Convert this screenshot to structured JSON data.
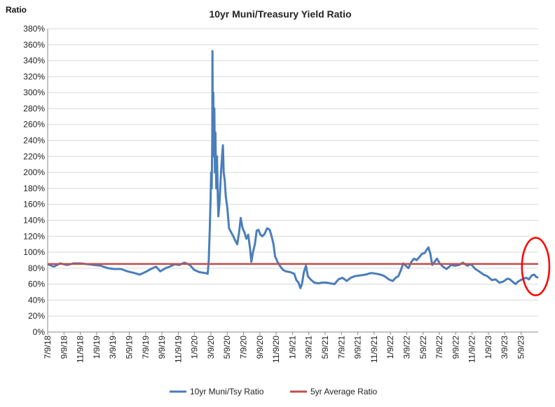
{
  "chart_data": {
    "type": "line",
    "title": "10yr Muni/Treasury Yield Ratio",
    "ylabel": "Ratio",
    "xlabel": "",
    "ylim": [
      0,
      380
    ],
    "ytick_step": 20,
    "ytick_suffix": "%",
    "x_range": [
      "2018-07-09",
      "2023-07-25"
    ],
    "x_tick_labels": [
      "7/9/18",
      "9/9/18",
      "11/9/18",
      "1/9/19",
      "3/9/19",
      "5/9/19",
      "7/9/19",
      "9/9/19",
      "11/9/19",
      "1/9/20",
      "3/9/20",
      "5/9/20",
      "7/9/20",
      "9/9/20",
      "11/9/20",
      "1/9/21",
      "3/9/21",
      "5/9/21",
      "7/9/21",
      "9/9/21",
      "11/9/21",
      "1/9/22",
      "3/9/22",
      "5/9/22",
      "7/9/22",
      "9/9/22",
      "11/9/22",
      "1/9/23",
      "3/9/23",
      "5/9/23"
    ],
    "grid": true,
    "legend_position": "bottom",
    "series": [
      {
        "name": "10yr Muni/Tsy Ratio",
        "color": "#4a7ebb",
        "points": [
          [
            "2018-07-09",
            85
          ],
          [
            "2018-08-01",
            82
          ],
          [
            "2018-08-25",
            86
          ],
          [
            "2018-09-20",
            84
          ],
          [
            "2018-10-15",
            86
          ],
          [
            "2018-11-09",
            86
          ],
          [
            "2018-12-05",
            85
          ],
          [
            "2018-12-30",
            84
          ],
          [
            "2019-01-25",
            83
          ],
          [
            "2019-02-20",
            80
          ],
          [
            "2019-03-15",
            79
          ],
          [
            "2019-04-10",
            79
          ],
          [
            "2019-05-05",
            76
          ],
          [
            "2019-05-30",
            74
          ],
          [
            "2019-06-20",
            72
          ],
          [
            "2019-07-10",
            75
          ],
          [
            "2019-08-01",
            79
          ],
          [
            "2019-08-20",
            82
          ],
          [
            "2019-09-05",
            76
          ],
          [
            "2019-09-25",
            80
          ],
          [
            "2019-10-10",
            82
          ],
          [
            "2019-10-30",
            85
          ],
          [
            "2019-11-15",
            84
          ],
          [
            "2019-12-05",
            87
          ],
          [
            "2019-12-25",
            84
          ],
          [
            "2020-01-10",
            78
          ],
          [
            "2020-01-30",
            75
          ],
          [
            "2020-02-20",
            74
          ],
          [
            "2020-03-01",
            73
          ],
          [
            "2020-03-05",
            90
          ],
          [
            "2020-03-09",
            130
          ],
          [
            "2020-03-12",
            170
          ],
          [
            "2020-03-14",
            200
          ],
          [
            "2020-03-16",
            180
          ],
          [
            "2020-03-18",
            240
          ],
          [
            "2020-03-19",
            352
          ],
          [
            "2020-03-20",
            260
          ],
          [
            "2020-03-22",
            300
          ],
          [
            "2020-03-24",
            220
          ],
          [
            "2020-03-26",
            280
          ],
          [
            "2020-03-28",
            200
          ],
          [
            "2020-03-30",
            250
          ],
          [
            "2020-04-02",
            180
          ],
          [
            "2020-04-05",
            220
          ],
          [
            "2020-04-08",
            170
          ],
          [
            "2020-04-10",
            145
          ],
          [
            "2020-04-14",
            160
          ],
          [
            "2020-04-20",
            200
          ],
          [
            "2020-04-24",
            220
          ],
          [
            "2020-04-27",
            234
          ],
          [
            "2020-04-30",
            200
          ],
          [
            "2020-05-04",
            190
          ],
          [
            "2020-05-08",
            170
          ],
          [
            "2020-05-14",
            155
          ],
          [
            "2020-05-20",
            130
          ],
          [
            "2020-05-28",
            125
          ],
          [
            "2020-06-05",
            120
          ],
          [
            "2020-06-12",
            115
          ],
          [
            "2020-06-20",
            110
          ],
          [
            "2020-06-27",
            125
          ],
          [
            "2020-07-03",
            143
          ],
          [
            "2020-07-10",
            130
          ],
          [
            "2020-07-17",
            125
          ],
          [
            "2020-07-24",
            117
          ],
          [
            "2020-07-31",
            122
          ],
          [
            "2020-08-07",
            105
          ],
          [
            "2020-08-12",
            88
          ],
          [
            "2020-08-18",
            100
          ],
          [
            "2020-08-25",
            110
          ],
          [
            "2020-09-01",
            127
          ],
          [
            "2020-09-08",
            128
          ],
          [
            "2020-09-15",
            122
          ],
          [
            "2020-09-22",
            120
          ],
          [
            "2020-10-01",
            123
          ],
          [
            "2020-10-10",
            130
          ],
          [
            "2020-10-20",
            128
          ],
          [
            "2020-10-27",
            120
          ],
          [
            "2020-11-03",
            110
          ],
          [
            "2020-11-09",
            95
          ],
          [
            "2020-11-18",
            88
          ],
          [
            "2020-11-27",
            83
          ],
          [
            "2020-12-08",
            78
          ],
          [
            "2020-12-20",
            76
          ],
          [
            "2021-01-05",
            75
          ],
          [
            "2021-01-20",
            73
          ],
          [
            "2021-01-28",
            65
          ],
          [
            "2021-02-05",
            62
          ],
          [
            "2021-02-12",
            55
          ],
          [
            "2021-02-18",
            60
          ],
          [
            "2021-02-25",
            75
          ],
          [
            "2021-03-05",
            83
          ],
          [
            "2021-03-12",
            70
          ],
          [
            "2021-03-22",
            66
          ],
          [
            "2021-04-05",
            62
          ],
          [
            "2021-04-20",
            61
          ],
          [
            "2021-05-05",
            62
          ],
          [
            "2021-05-20",
            62
          ],
          [
            "2021-06-05",
            61
          ],
          [
            "2021-06-20",
            60
          ],
          [
            "2021-07-05",
            66
          ],
          [
            "2021-07-20",
            68
          ],
          [
            "2021-08-05",
            64
          ],
          [
            "2021-08-20",
            68
          ],
          [
            "2021-09-05",
            70
          ],
          [
            "2021-09-25",
            71
          ],
          [
            "2021-10-15",
            72
          ],
          [
            "2021-11-05",
            74
          ],
          [
            "2021-11-25",
            73
          ],
          [
            "2021-12-10",
            72
          ],
          [
            "2021-12-25",
            70
          ],
          [
            "2022-01-10",
            66
          ],
          [
            "2022-01-25",
            64
          ],
          [
            "2022-02-05",
            68
          ],
          [
            "2022-02-15",
            70
          ],
          [
            "2022-02-25",
            78
          ],
          [
            "2022-03-05",
            86
          ],
          [
            "2022-03-15",
            83
          ],
          [
            "2022-03-25",
            80
          ],
          [
            "2022-04-05",
            88
          ],
          [
            "2022-04-15",
            92
          ],
          [
            "2022-04-25",
            90
          ],
          [
            "2022-05-05",
            94
          ],
          [
            "2022-05-15",
            98
          ],
          [
            "2022-05-25",
            99
          ],
          [
            "2022-06-01",
            103
          ],
          [
            "2022-06-08",
            106
          ],
          [
            "2022-06-15",
            98
          ],
          [
            "2022-06-22",
            84
          ],
          [
            "2022-07-01",
            88
          ],
          [
            "2022-07-10",
            92
          ],
          [
            "2022-07-20",
            86
          ],
          [
            "2022-08-01",
            82
          ],
          [
            "2022-08-15",
            79
          ],
          [
            "2022-09-01",
            84
          ],
          [
            "2022-09-15",
            83
          ],
          [
            "2022-10-01",
            84
          ],
          [
            "2022-10-15",
            87
          ],
          [
            "2022-11-01",
            83
          ],
          [
            "2022-11-15",
            85
          ],
          [
            "2022-12-01",
            79
          ],
          [
            "2022-12-15",
            76
          ],
          [
            "2023-01-01",
            72
          ],
          [
            "2023-01-15",
            70
          ],
          [
            "2023-02-01",
            65
          ],
          [
            "2023-02-15",
            66
          ],
          [
            "2023-03-01",
            62
          ],
          [
            "2023-03-15",
            63
          ],
          [
            "2023-04-01",
            67
          ],
          [
            "2023-04-10",
            66
          ],
          [
            "2023-04-20",
            63
          ],
          [
            "2023-05-01",
            60
          ],
          [
            "2023-05-10",
            63
          ],
          [
            "2023-05-20",
            65
          ],
          [
            "2023-06-01",
            67
          ],
          [
            "2023-06-10",
            68
          ],
          [
            "2023-06-20",
            66
          ],
          [
            "2023-07-01",
            71
          ],
          [
            "2023-07-10",
            72
          ],
          [
            "2023-07-18",
            69
          ],
          [
            "2023-07-25",
            68
          ]
        ]
      },
      {
        "name": "5yr Average Ratio",
        "color": "#c0504d",
        "points": [
          [
            "2018-07-09",
            85.3
          ],
          [
            "2023-07-25",
            85.3
          ]
        ]
      }
    ],
    "annotations": [
      {
        "shape": "ellipse",
        "color": "#ff0000",
        "x_range": [
          "2023-05-25",
          "2023-09-05"
        ],
        "y_range": [
          46,
          118
        ]
      }
    ]
  }
}
